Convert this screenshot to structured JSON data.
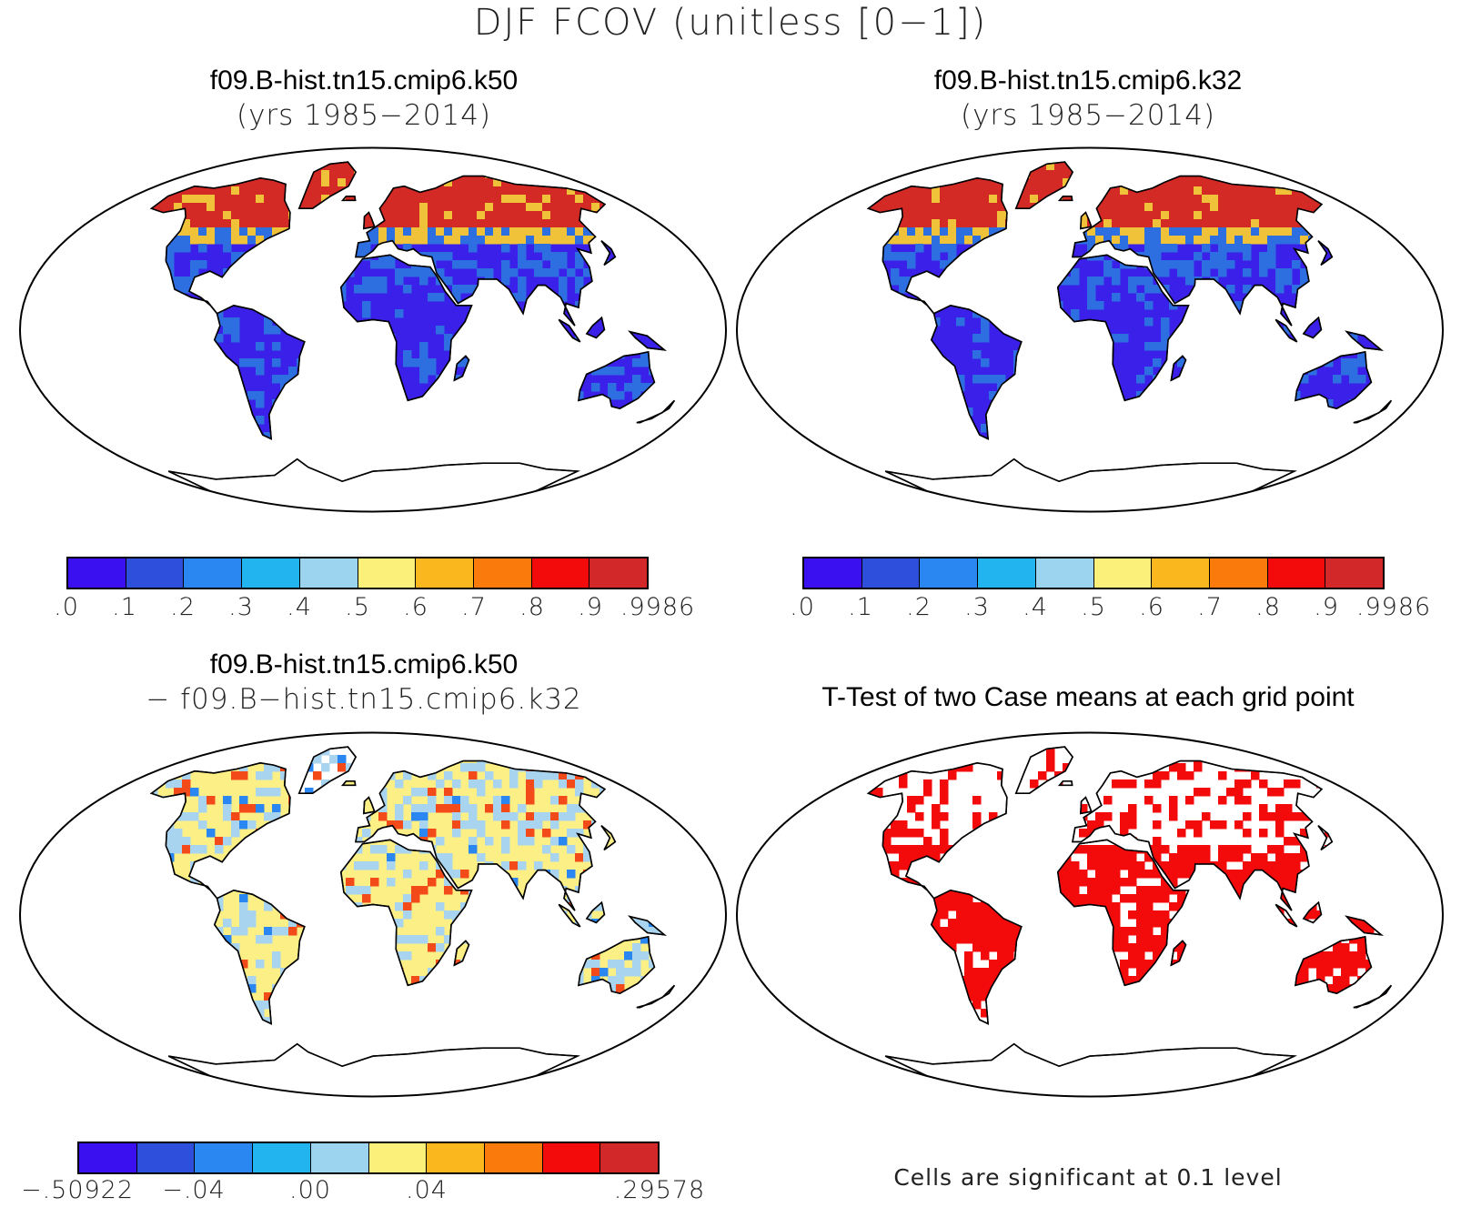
{
  "figure_title": "DJF FCOV (unitless [0−1])",
  "panels": {
    "k50": {
      "title": "f09.B-hist.tn15.cmip6.k50",
      "subtitle": "(yrs 1985−2014)"
    },
    "k32": {
      "title": "f09.B-hist.tn15.cmip6.k32",
      "subtitle": "(yrs 1985−2014)"
    },
    "diff": {
      "title": "f09.B-hist.tn15.cmip6.k50",
      "subtitle": "− f09.B−hist.tn15.cmip6.k32"
    },
    "ttest": {
      "title": "T-Test of two Case means at each grid point",
      "note": "Cells are significant at 0.1 level"
    }
  },
  "colorbars": {
    "absolute": {
      "colors": [
        "#3a10f0",
        "#2d4fdc",
        "#2a86f0",
        "#22b4ee",
        "#9cd3ef",
        "#fbf07a",
        "#fbb81e",
        "#fb7a0c",
        "#f30a0a",
        "#d2282a"
      ],
      "labels": [
        ".0",
        ".1",
        ".2",
        ".3",
        ".4",
        ".5",
        ".6",
        ".7",
        ".8",
        ".9",
        ".9986"
      ]
    },
    "difference": {
      "colors": [
        "#3a10f0",
        "#2d4fdc",
        "#2a86f0",
        "#22b4ee",
        "#9cd3ef",
        "#fbf07a",
        "#fbb81e",
        "#fb7a0c",
        "#f30a0a",
        "#d2282a"
      ],
      "labels": [
        "−.50922",
        "",
        "−.04",
        "",
        ".00",
        "",
        ".04",
        "",
        "",
        "",
        ".29578"
      ]
    }
  },
  "map_colors": {
    "land_low": "#3a20e8",
    "land_mid": "#2d6ee0",
    "boreal": "#d42a26",
    "boreal_edge": "#f0c23a",
    "diff_base": "#fbef85",
    "diff_cool": "#a9d4ef",
    "diff_warm": "#f34a1a",
    "sig": "#f30a0a"
  }
}
